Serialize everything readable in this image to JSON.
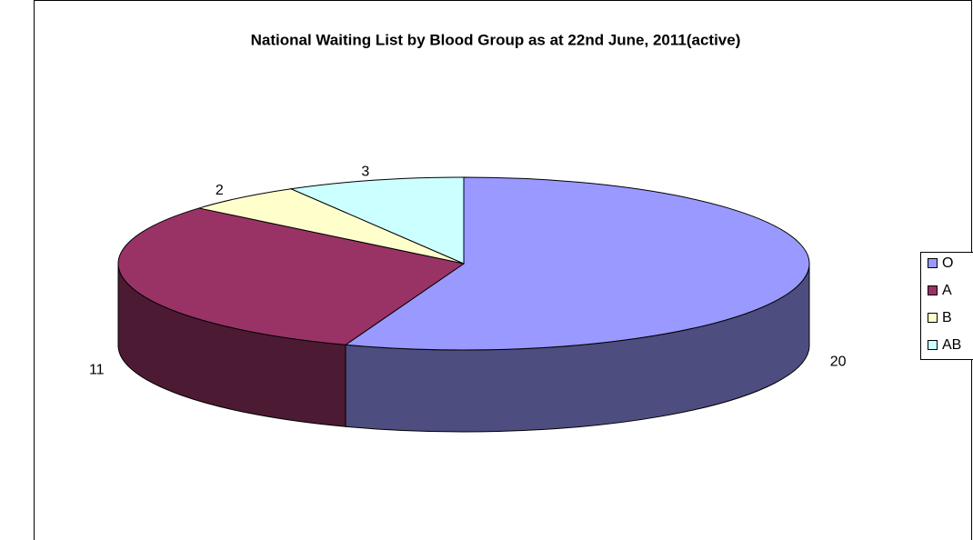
{
  "chart_data": {
    "type": "pie",
    "title": "National Waiting List by Blood Group as at 22nd June, 2011(active)",
    "categories": [
      "O",
      "A",
      "B",
      "AB"
    ],
    "values": [
      20,
      11,
      2,
      3
    ],
    "colors": [
      "#9999ff",
      "#993366",
      "#ffffcc",
      "#ccffff"
    ],
    "legend": "right"
  }
}
